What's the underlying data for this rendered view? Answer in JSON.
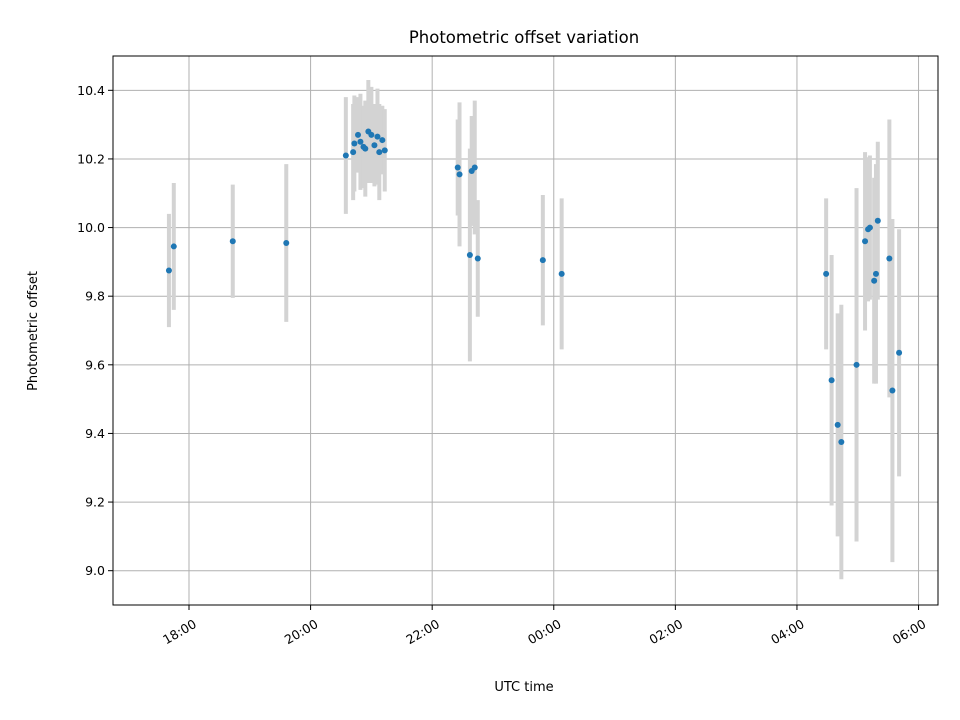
{
  "chart_data": {
    "type": "scatter",
    "title": "Photometric offset variation",
    "xlabel": "UTC time",
    "ylabel": "Photometric offset",
    "x_tick_labels": [
      "18:00",
      "20:00",
      "22:00",
      "00:00",
      "02:00",
      "04:00",
      "06:00"
    ],
    "x_tick_hours": [
      18,
      20,
      22,
      24,
      26,
      28,
      30
    ],
    "xlim_hours": [
      16.75,
      30.32
    ],
    "y_ticks": [
      9.0,
      9.2,
      9.4,
      9.6,
      9.8,
      10.0,
      10.2,
      10.4
    ],
    "y_tick_labels": [
      "9.0",
      "9.2",
      "9.4",
      "9.6",
      "9.8",
      "10.0",
      "10.2",
      "10.4"
    ],
    "ylim": [
      8.9,
      10.5
    ],
    "grid": true,
    "x_ticklabel_rotation": 30,
    "colors": {
      "points": "#1f77b4",
      "errorbars": "#d3d3d3",
      "grid": "#b0b0b0"
    },
    "series": [
      {
        "points": [
          {
            "t": 17.67,
            "y": 9.875,
            "err": 0.165
          },
          {
            "t": 17.75,
            "y": 9.945,
            "err": 0.185
          },
          {
            "t": 18.72,
            "y": 9.96,
            "err": 0.165
          },
          {
            "t": 19.6,
            "y": 9.955,
            "err": 0.23
          },
          {
            "t": 20.58,
            "y": 10.21,
            "err": 0.17
          },
          {
            "t": 20.7,
            "y": 10.22,
            "err": 0.14
          },
          {
            "t": 20.72,
            "y": 10.245,
            "err": 0.14
          },
          {
            "t": 20.78,
            "y": 10.27,
            "err": 0.11
          },
          {
            "t": 20.82,
            "y": 10.25,
            "err": 0.14
          },
          {
            "t": 20.87,
            "y": 10.235,
            "err": 0.12
          },
          {
            "t": 20.9,
            "y": 10.23,
            "err": 0.14
          },
          {
            "t": 20.95,
            "y": 10.28,
            "err": 0.15
          },
          {
            "t": 21.0,
            "y": 10.27,
            "err": 0.14
          },
          {
            "t": 21.05,
            "y": 10.24,
            "err": 0.12
          },
          {
            "t": 21.1,
            "y": 10.265,
            "err": 0.14
          },
          {
            "t": 21.13,
            "y": 10.22,
            "err": 0.14
          },
          {
            "t": 21.18,
            "y": 10.255,
            "err": 0.1
          },
          {
            "t": 21.22,
            "y": 10.225,
            "err": 0.12
          },
          {
            "t": 22.42,
            "y": 10.175,
            "err": 0.14
          },
          {
            "t": 22.45,
            "y": 10.155,
            "err": 0.21
          },
          {
            "t": 22.62,
            "y": 9.92,
            "err": 0.31
          },
          {
            "t": 22.65,
            "y": 10.165,
            "err": 0.16
          },
          {
            "t": 22.7,
            "y": 10.175,
            "err": 0.195
          },
          {
            "t": 22.75,
            "y": 9.91,
            "err": 0.17
          },
          {
            "t": 23.82,
            "y": 9.905,
            "err": 0.19
          },
          {
            "t": 24.13,
            "y": 9.865,
            "err": 0.22
          },
          {
            "t": 28.48,
            "y": 9.865,
            "err": 0.22
          },
          {
            "t": 28.57,
            "y": 9.555,
            "err": 0.365
          },
          {
            "t": 28.67,
            "y": 9.425,
            "err": 0.325
          },
          {
            "t": 28.73,
            "y": 9.375,
            "err": 0.4
          },
          {
            "t": 28.98,
            "y": 9.6,
            "err": 0.515
          },
          {
            "t": 29.12,
            "y": 9.96,
            "err": 0.26
          },
          {
            "t": 29.17,
            "y": 9.995,
            "err": 0.21
          },
          {
            "t": 29.2,
            "y": 10.0,
            "err": 0.21
          },
          {
            "t": 29.27,
            "y": 9.845,
            "err": 0.3
          },
          {
            "t": 29.3,
            "y": 9.865,
            "err": 0.32
          },
          {
            "t": 29.33,
            "y": 10.02,
            "err": 0.23
          },
          {
            "t": 29.52,
            "y": 9.91,
            "err": 0.405
          },
          {
            "t": 29.57,
            "y": 9.525,
            "err": 0.5
          },
          {
            "t": 29.68,
            "y": 9.635,
            "err": 0.36
          }
        ]
      }
    ]
  }
}
